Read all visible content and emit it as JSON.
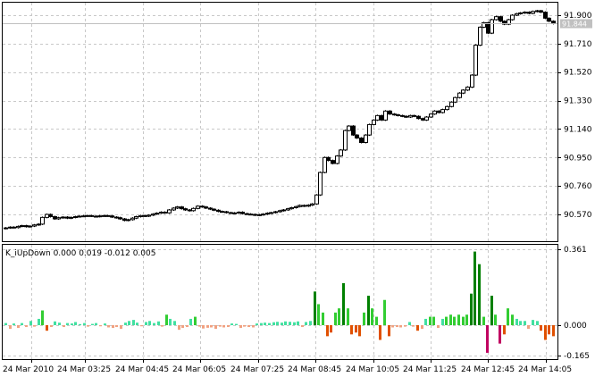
{
  "price_panel": {
    "y_ticks": [
      "91.900",
      "91.710",
      "91.520",
      "91.330",
      "91.140",
      "90.950",
      "90.760",
      "90.570"
    ],
    "y_tick_values": [
      91.9,
      91.71,
      91.52,
      91.33,
      91.14,
      90.95,
      90.76,
      90.57
    ],
    "bid_tag": "91.844",
    "bid_value": 91.844
  },
  "indicator_panel": {
    "label": "K_iUpDown 0.000 0.019 -0.012 0.005",
    "y_ticks": [
      "0.361",
      "0.000",
      "-0.165"
    ],
    "y_tick_values": [
      0.361,
      0.0,
      -0.165
    ]
  },
  "time_axis": {
    "labels": [
      "24 Mar 2010",
      "24 Mar 03:25",
      "24 Mar 04:45",
      "24 Mar 06:05",
      "24 Mar 07:25",
      "24 Mar 08:45",
      "24 Mar 10:05",
      "24 Mar 11:25",
      "24 Mar 12:45",
      "24 Mar 14:05"
    ]
  },
  "colors": {
    "grid": "#c8c8c8",
    "frame": "#000000",
    "bull_candle": "#ffffff",
    "bear_candle": "#000000",
    "up_strong": "#008000",
    "up_medium": "#32cd32",
    "up_light": "#40e0a0",
    "down_strong": "#e05000",
    "down_light": "#f0a080",
    "down_dark": "#c00060",
    "bid_line": "#c0c0c0"
  },
  "chart_data": {
    "type": "candlestick",
    "closes": [
      90.48,
      90.485,
      90.482,
      90.49,
      90.495,
      90.488,
      90.492,
      90.5,
      90.505,
      90.55,
      90.57,
      90.555,
      90.54,
      90.548,
      90.552,
      90.545,
      90.55,
      90.555,
      90.558,
      90.56,
      90.562,
      90.558,
      90.556,
      90.56,
      90.562,
      90.56,
      90.552,
      90.548,
      90.54,
      90.53,
      90.535,
      90.545,
      90.555,
      90.562,
      90.558,
      90.565,
      90.572,
      90.578,
      90.585,
      90.58,
      90.6,
      90.612,
      90.62,
      90.608,
      90.6,
      90.595,
      90.61,
      90.625,
      90.62,
      90.612,
      90.605,
      90.598,
      90.59,
      90.588,
      90.582,
      90.578,
      90.58,
      90.585,
      90.575,
      90.572,
      90.57,
      90.565,
      90.568,
      90.572,
      90.578,
      90.582,
      90.588,
      90.595,
      90.6,
      90.608,
      90.615,
      90.622,
      90.63,
      90.625,
      90.632,
      90.64,
      90.7,
      90.85,
      90.95,
      90.93,
      90.91,
      90.96,
      91.0,
      91.13,
      91.16,
      91.1,
      91.08,
      91.05,
      91.1,
      91.17,
      91.2,
      91.23,
      91.2,
      91.26,
      91.24,
      91.235,
      91.23,
      91.225,
      91.22,
      91.23,
      91.225,
      91.21,
      91.2,
      91.22,
      91.24,
      91.26,
      91.25,
      91.27,
      91.29,
      91.32,
      91.35,
      91.38,
      91.4,
      91.42,
      91.5,
      91.7,
      91.82,
      91.85,
      91.78,
      91.87,
      91.89,
      91.86,
      91.84,
      91.87,
      91.9,
      91.91,
      91.915,
      91.92,
      91.912,
      91.925,
      91.93,
      91.92,
      91.88,
      91.86,
      91.844
    ],
    "indicator": [
      0.01,
      -0.02,
      0.008,
      -0.015,
      0.01,
      -0.01,
      0.02,
      -0.008,
      0.03,
      0.07,
      -0.03,
      -0.01,
      0.018,
      0.012,
      -0.01,
      0.01,
      0.008,
      0.015,
      0.005,
      0.01,
      -0.008,
      0.006,
      0.01,
      -0.006,
      0.008,
      -0.012,
      -0.015,
      -0.01,
      -0.02,
      0.012,
      0.02,
      0.025,
      0.012,
      -0.006,
      0.015,
      0.02,
      0.01,
      0.018,
      -0.008,
      0.05,
      0.03,
      0.02,
      -0.025,
      -0.015,
      -0.01,
      0.03,
      0.04,
      -0.008,
      -0.018,
      -0.014,
      -0.012,
      -0.02,
      -0.008,
      -0.012,
      -0.01,
      0.008,
      0.006,
      -0.015,
      -0.008,
      -0.01,
      -0.012,
      0.008,
      0.01,
      0.012,
      0.01,
      0.014,
      0.016,
      0.012,
      0.018,
      0.016,
      0.014,
      0.018,
      -0.01,
      0.015,
      0.02,
      0.16,
      0.1,
      0.06,
      -0.06,
      -0.04,
      0.06,
      0.08,
      0.2,
      0.08,
      -0.05,
      -0.04,
      -0.06,
      0.06,
      0.14,
      0.08,
      0.04,
      -0.08,
      0.12,
      -0.06,
      -0.012,
      -0.01,
      -0.012,
      -0.008,
      0.015,
      -0.008,
      -0.03,
      -0.02,
      0.03,
      0.04,
      0.04,
      -0.015,
      0.03,
      0.04,
      0.05,
      0.04,
      0.05,
      0.04,
      0.05,
      0.15,
      0.35,
      0.29,
      0.04,
      -0.15,
      0.14,
      0.05,
      -0.1,
      -0.05,
      0.08,
      0.05,
      0.03,
      0.02,
      0.02,
      -0.02,
      0.025,
      0.02,
      -0.03,
      -0.08,
      -0.05,
      -0.06
    ]
  }
}
